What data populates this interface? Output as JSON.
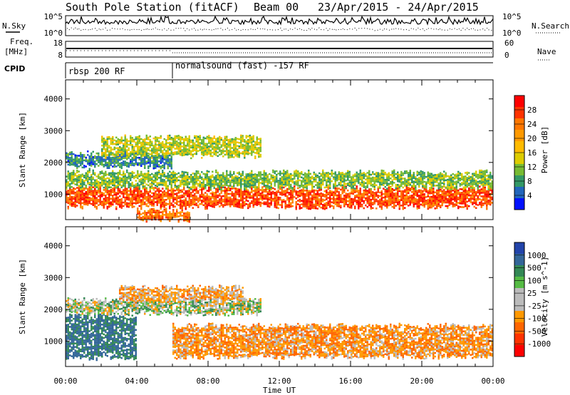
{
  "header": {
    "station": "South Pole Station (fitACF)",
    "beam": "Beam 00",
    "dates": "23/Apr/2015 - 24/Apr/2015"
  },
  "left_labels": {
    "nsky": "N.Sky",
    "freq": "Freq.",
    "freq_unit": "[MHz]",
    "cpid": "CPID"
  },
  "right_labels": {
    "nsearch": "N.Search",
    "nave": "Nave"
  },
  "noise_ticks": {
    "top": "10^5",
    "bottom": "10^0"
  },
  "freq_ticks": {
    "top": "18",
    "bottom": "8"
  },
  "nave_ticks": {
    "top": "60",
    "bottom": "0"
  },
  "cpid_segments": [
    {
      "label": "rbsp 200 RF",
      "start_hour": 0
    },
    {
      "label": "normalsound (fast) -157 RF",
      "start_hour": 6
    }
  ],
  "chart_data": [
    {
      "type": "heatmap",
      "name": "power",
      "ylabel": "Slant Range [km]",
      "xlabel": "",
      "xlim_hours": [
        0,
        24
      ],
      "ylim": [
        200,
        4600
      ],
      "yticks": [
        1000,
        2000,
        3000,
        4000
      ],
      "colorbar": {
        "label": "Power [dB]",
        "ticks": [
          "28",
          "24",
          "20",
          "16",
          "12",
          "8",
          "4"
        ],
        "colors": [
          "#ff0000",
          "#ff3300",
          "#ff7700",
          "#ff9a00",
          "#ffbb00",
          "#ddcc00",
          "#77bb33",
          "#339966",
          "#2266bb",
          "#0011ff"
        ]
      },
      "bands": [
        {
          "hours": [
            0,
            24
          ],
          "range": [
            600,
            1200
          ],
          "value": 26
        },
        {
          "hours": [
            0,
            24
          ],
          "range": [
            1200,
            1700
          ],
          "value": 12
        },
        {
          "hours": [
            0,
            6
          ],
          "range": [
            1900,
            2300
          ],
          "value": 8
        },
        {
          "hours": [
            2,
            11
          ],
          "range": [
            2200,
            2800
          ],
          "value": 14
        },
        {
          "hours": [
            4,
            7
          ],
          "range": [
            200,
            500
          ],
          "value": 24
        }
      ]
    },
    {
      "type": "heatmap",
      "name": "velocity",
      "ylabel": "Slant Range [km]",
      "xlabel": "Time UT",
      "xticks": [
        "00:00",
        "04:00",
        "08:00",
        "12:00",
        "16:00",
        "20:00",
        "00:00"
      ],
      "xlim_hours": [
        0,
        24
      ],
      "ylim": [
        200,
        4600
      ],
      "yticks": [
        1000,
        2000,
        3000,
        4000
      ],
      "colorbar": {
        "label": "Velocity [m s^-1]",
        "ticks": [
          "1000",
          "500",
          "100",
          "25",
          "-25",
          "-100",
          "-500",
          "-1000"
        ],
        "colors": [
          "#2244aa",
          "#336699",
          "#338855",
          "#55bb44",
          "#bbbbbb",
          "#bbbbbb",
          "#ff9900",
          "#ff6600",
          "#ff3300",
          "#ff0000"
        ]
      },
      "bands": [
        {
          "hours": [
            0,
            4
          ],
          "range": [
            500,
            1800
          ],
          "value": 300
        },
        {
          "hours": [
            6,
            24
          ],
          "range": [
            500,
            1500
          ],
          "value": -200
        },
        {
          "hours": [
            0,
            11
          ],
          "range": [
            1900,
            2300
          ],
          "value": 0
        },
        {
          "hours": [
            3,
            10
          ],
          "range": [
            2300,
            2700
          ],
          "value": -150
        }
      ]
    }
  ]
}
